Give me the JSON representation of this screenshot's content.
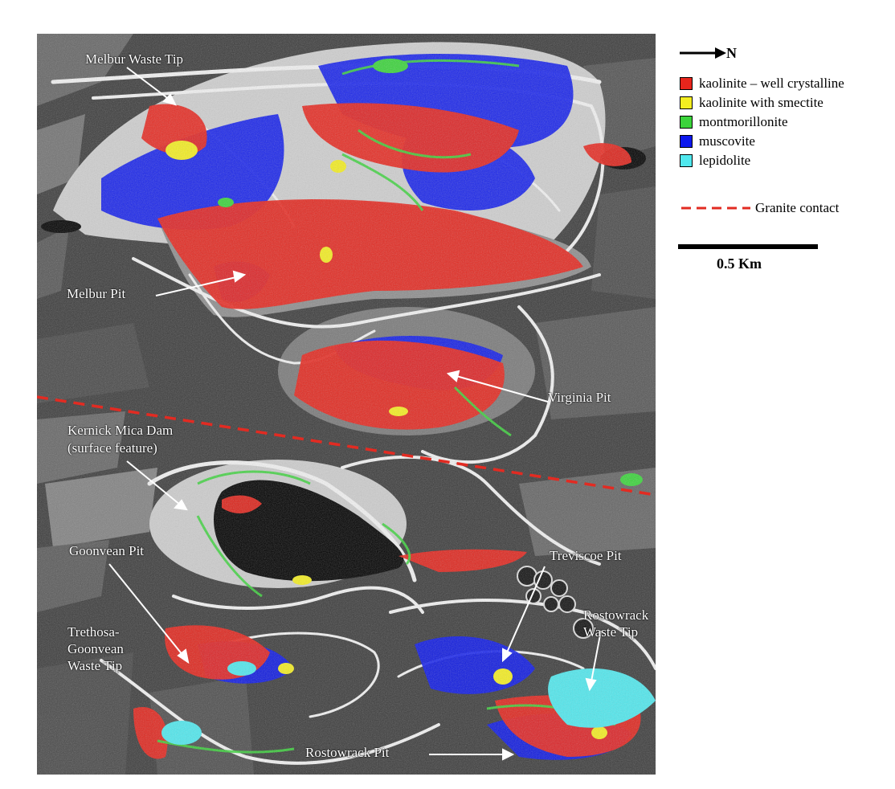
{
  "north_label": "N",
  "legend": {
    "items": [
      {
        "label": "kaolinite – well crystalline",
        "color": "#e8251c"
      },
      {
        "label": "kaolinite with smectite",
        "color": "#f4ee21"
      },
      {
        "label": "montmorillonite",
        "color": "#3bd43b"
      },
      {
        "label": "muscovite",
        "color": "#0c18ee"
      },
      {
        "label": "lepidolite",
        "color": "#50e8ee"
      }
    ],
    "granite_contact": {
      "label": "Granite contact",
      "color": "#e22b22"
    }
  },
  "scale_bar": {
    "label": "0.5 Km"
  },
  "map_labels": {
    "melbur_waste_tip": "Melbur Waste Tip",
    "melbur_pit": "Melbur Pit",
    "virginia_pit": "Virginia Pit",
    "kernick_line1": "Kernick Mica Dam",
    "kernick_line2": "(surface feature)",
    "goonvean_pit": "Goonvean Pit",
    "treviscoe_pit": "Treviscoe Pit",
    "trethosa_line1": "Trethosa-",
    "trethosa_line2": "Goonvean",
    "trethosa_line3": "Waste Tip",
    "rostowrack_tip_line1": "Rostowrack",
    "rostowrack_tip_line2": "Waste Tip",
    "rostowrack_pit": "Rostowrack Pit"
  }
}
